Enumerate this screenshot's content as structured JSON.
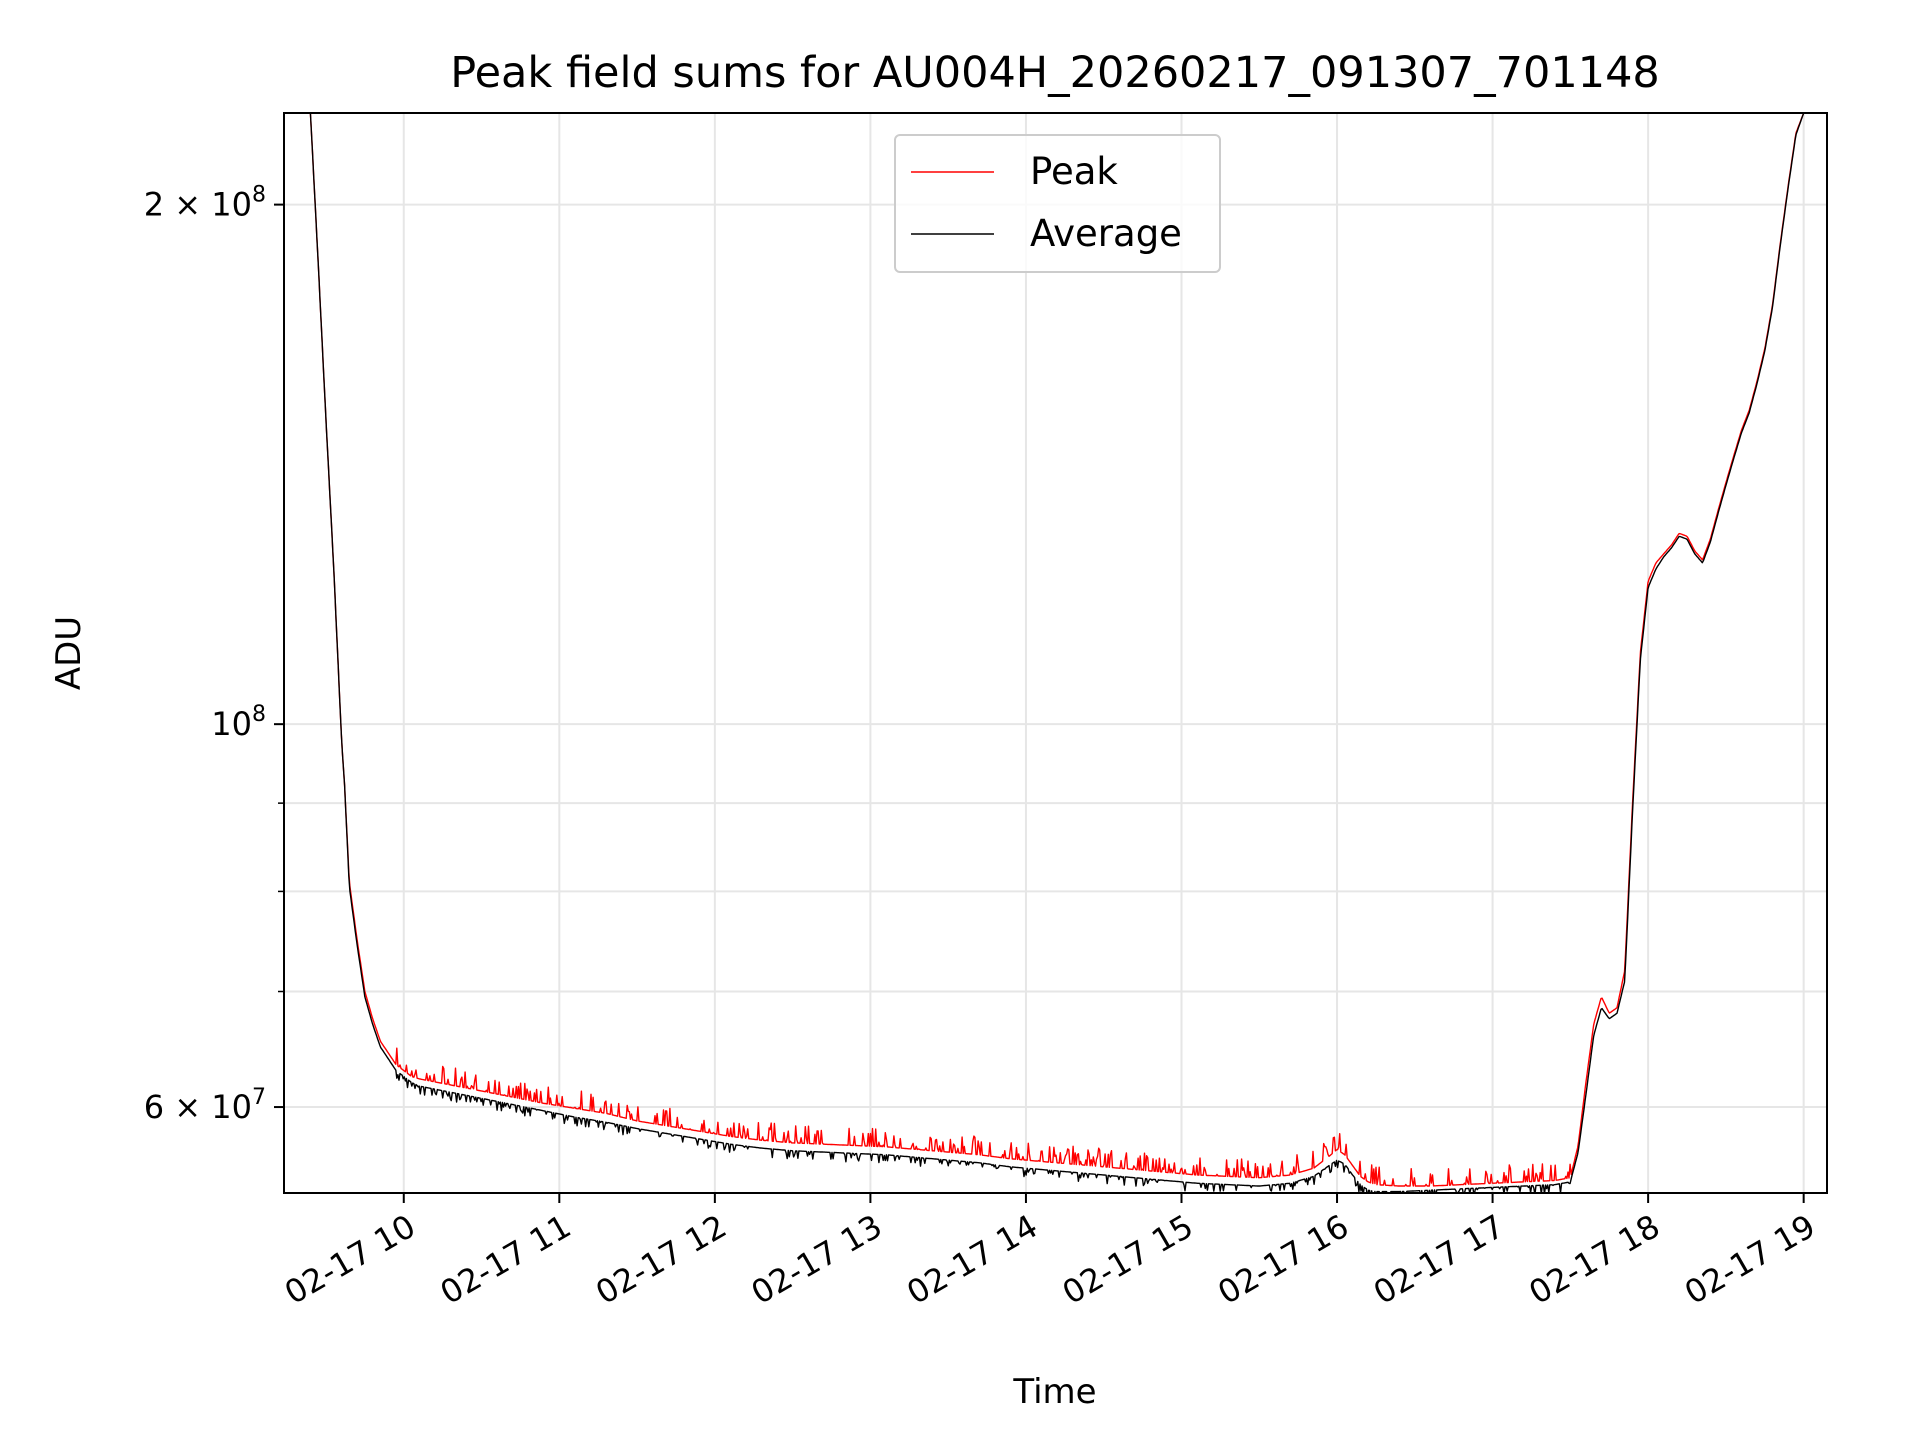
{
  "chart_data": {
    "type": "line",
    "title": "Peak field sums for AU004H_20260217_091307_701148",
    "xlabel": "Time",
    "ylabel": "ADU",
    "yscale": "log",
    "xlim": [
      9.23,
      19.15
    ],
    "ylim": [
      53500000,
      226000000
    ],
    "grid": true,
    "legend_position": "top-center",
    "x_ticks": [
      {
        "value": 10,
        "label": "02-17 10"
      },
      {
        "value": 11,
        "label": "02-17 11"
      },
      {
        "value": 12,
        "label": "02-17 12"
      },
      {
        "value": 13,
        "label": "02-17 13"
      },
      {
        "value": 14,
        "label": "02-17 14"
      },
      {
        "value": 15,
        "label": "02-17 15"
      },
      {
        "value": 16,
        "label": "02-17 16"
      },
      {
        "value": 17,
        "label": "02-17 17"
      },
      {
        "value": 18,
        "label": "02-17 18"
      },
      {
        "value": 19,
        "label": "02-17 19"
      }
    ],
    "y_major_ticks": [
      {
        "value": 60000000,
        "base": "6 × 10",
        "exp": "7"
      },
      {
        "value": 100000000,
        "base": "10",
        "exp": "8"
      },
      {
        "value": 200000000,
        "base": "2 × 10",
        "exp": "8"
      }
    ],
    "y_minor_ticks": [
      70000000,
      80000000,
      90000000
    ],
    "series": [
      {
        "name": "Peak",
        "color": "#ff0000",
        "x": [
          9.4,
          9.45,
          9.5,
          9.55,
          9.6,
          9.62,
          9.65,
          9.7,
          9.75,
          9.8,
          9.85,
          9.9,
          9.95,
          10.0,
          10.05,
          10.1,
          10.3,
          10.5,
          10.7,
          10.9,
          11.1,
          11.3,
          11.5,
          11.7,
          11.9,
          12.1,
          12.3,
          12.5,
          12.7,
          12.9,
          13.1,
          13.3,
          13.5,
          13.7,
          13.9,
          14.1,
          14.3,
          14.5,
          14.7,
          14.9,
          15.1,
          15.3,
          15.5,
          15.7,
          15.85,
          15.95,
          16.0,
          16.05,
          16.1,
          16.15,
          16.2,
          16.25,
          16.4,
          16.6,
          16.8,
          17.0,
          17.2,
          17.4,
          17.5,
          17.55,
          17.6,
          17.65,
          17.7,
          17.75,
          17.8,
          17.85,
          17.9,
          17.95,
          18.0,
          18.05,
          18.1,
          18.15,
          18.2,
          18.25,
          18.3,
          18.35,
          18.4,
          18.45,
          18.5,
          18.55,
          18.6,
          18.65,
          18.7,
          18.75,
          18.8,
          18.85,
          18.9,
          18.95,
          19.0
        ],
        "y": [
          226000000,
          185000000,
          150000000,
          123000000,
          98000000,
          92000000,
          81000000,
          75000000,
          70000000,
          67500000,
          65500000,
          64500000,
          63500000,
          63000000,
          62500000,
          62300000,
          61800000,
          61300000,
          60800000,
          60300000,
          59900000,
          59500000,
          58900000,
          58500000,
          58100000,
          57700000,
          57400000,
          57200000,
          57100000,
          57000000,
          56900000,
          56700000,
          56500000,
          56300000,
          56000000,
          55800000,
          55600000,
          55400000,
          55200000,
          55000000,
          54800000,
          54700000,
          54600000,
          54800000,
          55300000,
          56200000,
          56700000,
          56300000,
          55500000,
          54700000,
          54300000,
          54100000,
          54000000,
          54000000,
          54100000,
          54200000,
          54300000,
          54400000,
          54600000,
          57000000,
          62000000,
          67000000,
          69500000,
          68000000,
          68500000,
          72000000,
          90000000,
          110000000,
          121000000,
          124000000,
          125500000,
          127000000,
          129000000,
          128500000,
          126000000,
          124500000,
          128000000,
          133000000,
          138000000,
          143000000,
          148000000,
          152000000,
          158000000,
          165000000,
          175000000,
          190000000,
          205000000,
          220000000,
          226000000
        ]
      },
      {
        "name": "Average",
        "color": "#000000",
        "x": [
          9.4,
          9.45,
          9.5,
          9.55,
          9.6,
          9.62,
          9.65,
          9.7,
          9.75,
          9.8,
          9.85,
          9.9,
          9.95,
          10.0,
          10.05,
          10.1,
          10.3,
          10.5,
          10.7,
          10.9,
          11.1,
          11.3,
          11.5,
          11.7,
          11.9,
          12.1,
          12.3,
          12.5,
          12.7,
          12.9,
          13.1,
          13.3,
          13.5,
          13.7,
          13.9,
          14.1,
          14.3,
          14.5,
          14.7,
          14.9,
          15.1,
          15.3,
          15.5,
          15.7,
          15.85,
          15.95,
          16.0,
          16.05,
          16.1,
          16.15,
          16.2,
          16.25,
          16.4,
          16.6,
          16.8,
          17.0,
          17.2,
          17.4,
          17.5,
          17.55,
          17.6,
          17.65,
          17.7,
          17.75,
          17.8,
          17.85,
          17.9,
          17.95,
          18.0,
          18.05,
          18.1,
          18.15,
          18.2,
          18.25,
          18.3,
          18.35,
          18.4,
          18.45,
          18.5,
          18.55,
          18.6,
          18.65,
          18.7,
          18.75,
          18.8,
          18.85,
          18.9,
          18.95,
          19.0
        ],
        "y": [
          226000000,
          185000000,
          150000000,
          123000000,
          98000000,
          92000000,
          80500000,
          74500000,
          69500000,
          67000000,
          65000000,
          64000000,
          63000000,
          62500000,
          62000000,
          61700000,
          61200000,
          60700000,
          60200000,
          59700000,
          59200000,
          58800000,
          58300000,
          57900000,
          57500000,
          57100000,
          56800000,
          56600000,
          56500000,
          56400000,
          56300000,
          56100000,
          55900000,
          55700000,
          55400000,
          55200000,
          55000000,
          54800000,
          54600000,
          54400000,
          54200000,
          54100000,
          54000000,
          54200000,
          54700000,
          55500000,
          55900000,
          55600000,
          54800000,
          54100000,
          53700000,
          53600000,
          53600000,
          53700000,
          53800000,
          53900000,
          54000000,
          54100000,
          54300000,
          56500000,
          61000000,
          66000000,
          68500000,
          67500000,
          68000000,
          71000000,
          89000000,
          109000000,
          120000000,
          123000000,
          125000000,
          126500000,
          128500000,
          128000000,
          125500000,
          124000000,
          127500000,
          132500000,
          137500000,
          142500000,
          147500000,
          151500000,
          157500000,
          164500000,
          174500000,
          189500000,
          204500000,
          219500000,
          226000000
        ]
      }
    ]
  }
}
